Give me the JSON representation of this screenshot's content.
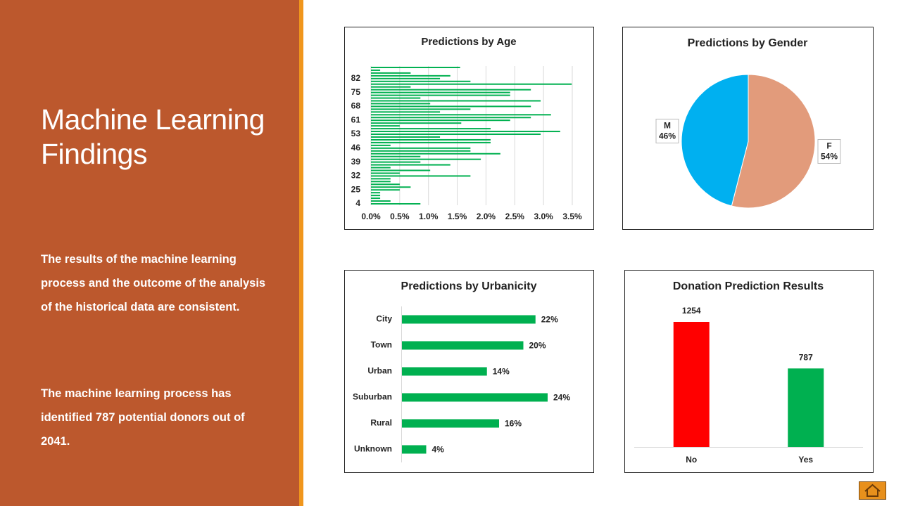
{
  "slide": {
    "title": "Machine Learning Findings",
    "paragraphs": [
      "The results of the machine learning process and the outcome of the analysis of the historical data are consistent.",
      "The machine learning process has identified 787 potential donors out of 2041."
    ]
  },
  "chart_data": [
    {
      "type": "bar",
      "orientation": "horizontal",
      "title": "Predictions by Age",
      "color": "#00b050",
      "grid": true,
      "categories": [
        "4",
        null,
        null,
        null,
        null,
        "25",
        null,
        null,
        null,
        null,
        "32",
        null,
        null,
        null,
        null,
        "39",
        null,
        null,
        null,
        null,
        "46",
        null,
        null,
        null,
        null,
        "53",
        null,
        null,
        null,
        null,
        "61",
        null,
        null,
        null,
        null,
        "68",
        null,
        null,
        null,
        null,
        "75",
        null,
        null,
        null,
        null,
        "82",
        null,
        null,
        null,
        null
      ],
      "values": [
        0.86,
        0.34,
        0.16,
        0.16,
        0.16,
        0.5,
        0.69,
        0.5,
        0.34,
        0.34,
        1.73,
        0.5,
        1.03,
        0.34,
        1.38,
        0.86,
        1.91,
        0.86,
        2.25,
        1.73,
        1.73,
        0.34,
        2.08,
        2.08,
        1.2,
        2.95,
        3.29,
        2.08,
        0.5,
        1.57,
        2.42,
        2.78,
        3.13,
        1.2,
        1.73,
        2.78,
        1.03,
        2.95,
        0.86,
        2.42,
        2.42,
        2.78,
        0.69,
        3.49,
        1.73,
        1.2,
        1.38,
        0.69,
        0.16,
        1.55
      ],
      "xlim": [
        0,
        3.5
      ],
      "xticks": [
        {
          "value": 0,
          "label": "0.0%"
        },
        {
          "value": 0.5,
          "label": "0.5%"
        },
        {
          "value": 1,
          "label": "1.0%"
        },
        {
          "value": 1.5,
          "label": "1.5%"
        },
        {
          "value": 2,
          "label": "2.0%"
        },
        {
          "value": 2.5,
          "label": "2.5%"
        },
        {
          "value": 3,
          "label": "3.0%"
        },
        {
          "value": 3.5,
          "label": "3.5%"
        }
      ]
    },
    {
      "type": "pie",
      "title": "Predictions  by Gender",
      "categories": [
        "F",
        "M"
      ],
      "values": [
        54,
        46
      ],
      "value_labels": [
        "54%",
        "46%"
      ],
      "colors": [
        "#e29b7b",
        "#00b0f0"
      ]
    },
    {
      "type": "bar",
      "orientation": "horizontal",
      "title": "Predictions  by Urbanicity",
      "color": "#00b050",
      "categories": [
        "City",
        "Town",
        "Urban",
        "Suburban",
        "Rural",
        "Unknown"
      ],
      "values": [
        22,
        20,
        14,
        24,
        16,
        4
      ],
      "value_labels": [
        "22%",
        "20%",
        "14%",
        "24%",
        "16%",
        "4%"
      ]
    },
    {
      "type": "bar",
      "title": "Donation  Prediction Results",
      "categories": [
        "No",
        "Yes"
      ],
      "values": [
        1254,
        787
      ],
      "colors": [
        "#ff0000",
        "#00b050"
      ]
    }
  ]
}
